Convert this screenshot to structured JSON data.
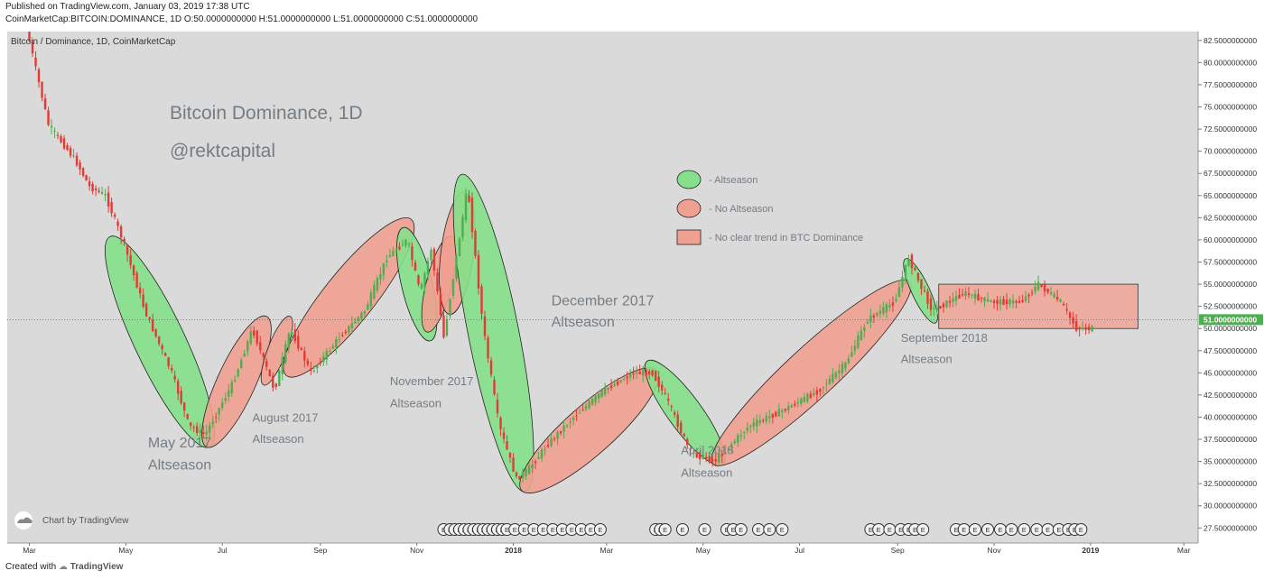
{
  "header": {
    "published": "Published on TradingView.com, January 03, 2019 17:38 UTC",
    "ohlc": "CoinMarketCap:BITCOIN:DOMINANCE, 1D  O:50.0000000000  H:51.0000000000  L:51.0000000000  C:51.0000000000"
  },
  "footer": {
    "created_with": "Created with",
    "brand": "TradingView"
  },
  "colors": {
    "background": "#dadada",
    "candle_up": "#4caf50",
    "candle_down": "#e53935",
    "altseason": "#84e08a",
    "no_altseason": "#f0a090",
    "text": "#757d84"
  },
  "chart_data": {
    "type": "line",
    "symbol_label": "Bitcoin / Dominance, 1D, CoinMarketCap",
    "title": "Bitcoin Dominance, 1D",
    "subtitle": "@rektcapital",
    "watermark": "Chart by TradingView",
    "x_ticks": [
      "Mar",
      "May",
      "Jul",
      "Sep",
      "Nov",
      "2018",
      "Mar",
      "May",
      "Jul",
      "Sep",
      "Nov",
      "2019",
      "Mar"
    ],
    "x_range": [
      "2017-02-15",
      "2019-03-10"
    ],
    "y_ticks": [
      "27.5000000000",
      "30.0000000000",
      "32.5000000000",
      "35.0000000000",
      "37.5000000000",
      "40.0000000000",
      "42.5000000000",
      "45.0000000000",
      "47.5000000000",
      "50.0000000000",
      "52.5000000000",
      "55.0000000000",
      "57.5000000000",
      "60.0000000000",
      "62.5000000000",
      "65.0000000000",
      "67.5000000000",
      "70.0000000000",
      "72.5000000000",
      "75.0000000000",
      "77.5000000000",
      "80.0000000000",
      "82.5000000000"
    ],
    "ylim": [
      25.8,
      83.5
    ],
    "current_price": {
      "value": 51,
      "label": "51.0000000000"
    },
    "series": [
      {
        "x": [
          "2017-03-01",
          "2017-03-15",
          "2017-04-01",
          "2017-04-10",
          "2017-04-20",
          "2017-05-01",
          "2017-05-15",
          "2017-06-01",
          "2017-06-12",
          "2017-06-22",
          "2017-07-10",
          "2017-07-22",
          "2017-08-05",
          "2017-08-15",
          "2017-08-28",
          "2017-09-15",
          "2017-10-01",
          "2017-10-15",
          "2017-10-28",
          "2017-11-05",
          "2017-11-12",
          "2017-11-20",
          "2017-11-28",
          "2017-12-05",
          "2017-12-15",
          "2017-12-25",
          "2018-01-05",
          "2018-01-12",
          "2018-01-25",
          "2018-02-10",
          "2018-03-01",
          "2018-03-20",
          "2018-04-01",
          "2018-04-10",
          "2018-04-25",
          "2018-05-10",
          "2018-06-01",
          "2018-06-25",
          "2018-07-15",
          "2018-08-01",
          "2018-08-15",
          "2018-09-01",
          "2018-09-10",
          "2018-09-17",
          "2018-09-25",
          "2018-10-15",
          "2018-11-01",
          "2018-11-20",
          "2018-12-01",
          "2018-12-15",
          "2018-12-25",
          "2019-01-03"
        ],
        "values": [
          84,
          73,
          69,
          66,
          65,
          60,
          52,
          45,
          39,
          38,
          44,
          50,
          43,
          50,
          45,
          49,
          52,
          58,
          60,
          54,
          59,
          49,
          58,
          66,
          50,
          39,
          33,
          34,
          37,
          40,
          43,
          45,
          45,
          42,
          36,
          35,
          39,
          41,
          43,
          46,
          51,
          53,
          58,
          55,
          52,
          54,
          53,
          53,
          55,
          53,
          50,
          50
        ]
      }
    ],
    "zones": [
      {
        "type": "altseason",
        "from": "2017-04-22",
        "to": "2017-06-22",
        "hi": 60,
        "lo": 37
      },
      {
        "type": "no_altseason",
        "from": "2017-06-22",
        "to": "2017-07-28",
        "hi": 51,
        "lo": 37
      },
      {
        "type": "no_altseason",
        "from": "2017-07-28",
        "to": "2017-08-12",
        "hi": 51,
        "lo": 44
      },
      {
        "type": "no_altseason",
        "from": "2017-08-12",
        "to": "2017-10-27",
        "hi": 62,
        "lo": 45
      },
      {
        "type": "altseason",
        "from": "2017-10-24",
        "to": "2017-11-09",
        "hi": 61,
        "lo": 49
      },
      {
        "type": "no_altseason",
        "from": "2017-11-08",
        "to": "2017-11-22",
        "hi": 60,
        "lo": 50
      },
      {
        "type": "no_altseason",
        "from": "2017-11-22",
        "to": "2017-12-01",
        "hi": 65,
        "lo": 52
      },
      {
        "type": "altseason",
        "from": "2017-11-30",
        "to": "2018-01-08",
        "hi": 67,
        "lo": 32
      },
      {
        "type": "no_altseason",
        "from": "2018-01-08",
        "to": "2018-03-31",
        "hi": 45,
        "lo": 32
      },
      {
        "type": "altseason",
        "from": "2018-03-28",
        "to": "2018-05-12",
        "hi": 46,
        "lo": 35
      },
      {
        "type": "no_altseason",
        "from": "2018-05-09",
        "to": "2018-09-07",
        "hi": 55,
        "lo": 35
      },
      {
        "type": "altseason",
        "from": "2018-09-07",
        "to": "2018-09-24",
        "hi": 57.5,
        "lo": 51
      },
      {
        "type": "no_trend",
        "from": "2018-09-27",
        "to": "2019-01-31",
        "hi": 55,
        "lo": 50
      }
    ],
    "legend": {
      "altseason": "- Altseason",
      "no_altseason": "- No Altseason",
      "no_trend": "- No clear trend in BTC Dominance"
    },
    "annotations": [
      {
        "text": "May 2017",
        "x": "2017-05-15",
        "y": 36.6,
        "size": "large"
      },
      {
        "text": "Altseason",
        "x": "2017-05-15",
        "y": 34.1,
        "size": "large"
      },
      {
        "text": "August 2017",
        "x": "2017-07-20",
        "y": 39.5,
        "size": "small"
      },
      {
        "text": "Altseason",
        "x": "2017-07-20",
        "y": 37.1,
        "size": "small"
      },
      {
        "text": "November 2017",
        "x": "2017-10-15",
        "y": 43.6,
        "size": "small"
      },
      {
        "text": "Altseason",
        "x": "2017-10-15",
        "y": 41.1,
        "size": "small"
      },
      {
        "text": "December 2017",
        "x": "2018-01-25",
        "y": 52.6,
        "size": "large"
      },
      {
        "text": "Altseason",
        "x": "2018-01-25",
        "y": 50.2,
        "size": "large"
      },
      {
        "text": "April 2018",
        "x": "2018-04-17",
        "y": 35.8,
        "size": "small"
      },
      {
        "text": "Altseason",
        "x": "2018-04-17",
        "y": 33.3,
        "size": "small"
      },
      {
        "text": "September 2018",
        "x": "2018-09-03",
        "y": 48.5,
        "size": "small"
      },
      {
        "text": "Altseason",
        "x": "2018-09-03",
        "y": 46.1,
        "size": "small"
      }
    ],
    "event_markers": [
      "2017-11-18",
      "2017-11-22",
      "2017-11-25",
      "2017-11-28",
      "2017-12-01",
      "2017-12-04",
      "2017-12-07",
      "2017-12-10",
      "2017-12-13",
      "2017-12-16",
      "2017-12-19",
      "2017-12-22",
      "2017-12-25",
      "2017-12-28",
      "2018-01-02",
      "2018-01-08",
      "2018-01-14",
      "2018-01-20",
      "2018-01-26",
      "2018-02-01",
      "2018-02-07",
      "2018-02-13",
      "2018-02-19",
      "2018-02-25",
      "2018-04-01",
      "2018-04-04",
      "2018-04-07",
      "2018-04-18",
      "2018-05-02",
      "2018-05-16",
      "2018-05-20",
      "2018-05-25",
      "2018-06-05",
      "2018-06-12",
      "2018-06-20",
      "2018-08-15",
      "2018-08-20",
      "2018-08-27",
      "2018-09-03",
      "2018-09-08",
      "2018-09-12",
      "2018-09-17",
      "2018-10-08",
      "2018-10-13",
      "2018-10-20",
      "2018-10-28",
      "2018-11-05",
      "2018-11-12",
      "2018-11-20",
      "2018-11-28",
      "2018-12-05",
      "2018-12-12",
      "2018-12-18",
      "2018-12-22",
      "2018-12-26"
    ]
  }
}
